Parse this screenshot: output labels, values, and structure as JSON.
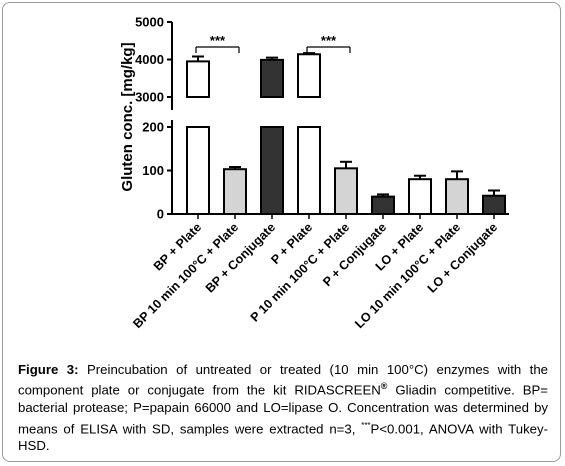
{
  "chart_data": {
    "type": "bar",
    "ylabel": "Gluten conc. [mg/kg]",
    "y_axis_break": {
      "lower_range": [
        0,
        200
      ],
      "upper_range": [
        3000,
        5000
      ]
    },
    "y_ticks": {
      "lower": [
        "0",
        "100",
        "200"
      ],
      "upper": [
        "3000",
        "4000",
        "5000"
      ]
    },
    "categories": [
      "BP + Plate",
      "BP 10 min 100°C + Plate",
      "BP + Conjugate",
      "P + Plate",
      "P 10 min 100°C + Plate",
      "P + Conjugate",
      "LO + Plate",
      "LO 10 min 100°C + Plate",
      "LO + Conjugate"
    ],
    "values": [
      3950,
      103,
      3990,
      4140,
      105,
      40,
      80,
      80,
      42
    ],
    "errors": [
      130,
      5,
      60,
      30,
      15,
      5,
      8,
      18,
      12
    ],
    "fills": [
      "white",
      "lightgray",
      "dark",
      "white",
      "lightgray",
      "dark",
      "white",
      "lightgray",
      "dark"
    ],
    "significance": [
      {
        "from": 0,
        "to": 1,
        "label": "***"
      },
      {
        "from": 3,
        "to": 4,
        "label": "***"
      }
    ],
    "colors": {
      "white": "#ffffff",
      "lightgray": "#d4d4d4",
      "dark": "#333333",
      "outline": "#000000"
    }
  },
  "caption": {
    "figure_label": "Figure 3:",
    "text_1": " Preincubation of untreated or treated (10 min 100°C) enzymes with the component plate or conjugate from the kit RIDASCREEN",
    "registered_mark": "®",
    "text_2": " Gliadin competitive. BP= bacterial protease; P=papain 66000 and LO=lipase O. Concentration was determined by means of ELISA with SD, samples were extracted n=3, ",
    "p_marker": "***",
    "text_3": "P<0.001, ANOVA with Tukey-HSD."
  }
}
